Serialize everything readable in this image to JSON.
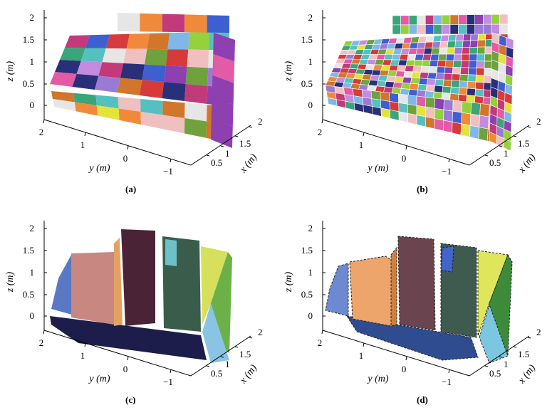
{
  "figure": {
    "panels": [
      {
        "caption": "(a)",
        "z_axis": {
          "label": "z (m)",
          "ticks": [
            "0",
            "0.5",
            "1",
            "1.5",
            "2"
          ]
        },
        "y_axis": {
          "label": "y (m)",
          "ticks": [
            "2",
            "1",
            "0",
            "−1"
          ]
        },
        "x_axis": {
          "label": "x (m)",
          "ticks": [
            "0.5",
            "1",
            "1.5",
            "2"
          ]
        },
        "segmentation": "coarse supervoxel patches"
      },
      {
        "caption": "(b)",
        "z_axis": {
          "label": "z (m)",
          "ticks": [
            "0",
            "0.5",
            "1",
            "1.5",
            "2"
          ]
        },
        "y_axis": {
          "label": "y (m)",
          "ticks": [
            "2",
            "1",
            "0",
            "−1"
          ]
        },
        "x_axis": {
          "label": "x (m)",
          "ticks": [
            "0.5",
            "1",
            "1.5",
            "2"
          ]
        },
        "segmentation": "fine supervoxel patches"
      },
      {
        "caption": "(c)",
        "z_axis": {
          "label": "z (m)",
          "ticks": [
            "0",
            "0.5",
            "1",
            "1.5",
            "2"
          ]
        },
        "y_axis": {
          "label": "y (m)",
          "ticks": [
            "2",
            "1",
            "0",
            "−1"
          ]
        },
        "x_axis": {
          "label": "x (m)",
          "ticks": [
            "0.5",
            "1",
            "1.5",
            "2"
          ]
        },
        "segmentation": "merged segments"
      },
      {
        "caption": "(d)",
        "z_axis": {
          "label": "z (m)",
          "ticks": [
            "0",
            "0.5",
            "1",
            "1.5",
            "2"
          ]
        },
        "y_axis": {
          "label": "y (m)",
          "ticks": [
            "2",
            "1",
            "0",
            "−1"
          ]
        },
        "x_axis": {
          "label": "x (m)",
          "ticks": [
            "0.5",
            "1",
            "1.5",
            "2"
          ]
        },
        "segmentation": "fitted planar surfaces"
      }
    ],
    "colors": {
      "patch_palette": [
        "#8e3fb0",
        "#e35aa7",
        "#7fb8e6",
        "#c48be0",
        "#3d5fd1",
        "#2a2f7a",
        "#e6e6e6",
        "#93d13d",
        "#d1762a",
        "#f0c0c0",
        "#6fa23c",
        "#c23a7a",
        "#e3e33a",
        "#55c0c0",
        "#d63a3a",
        "#9b7ad6",
        "#3aa57a",
        "#f08a3a"
      ],
      "c_segments": {
        "left_wall": "#5b78c4",
        "pink_board": "#c88781",
        "orange_strip": "#e3a264",
        "dark_board": "#4a2436",
        "green_board": "#3a5d4b",
        "cyan_box": "#6cc0c8",
        "yellow_panel": "#d7e05a",
        "green_edge": "#6cb04a",
        "floor": "#1c1d4a",
        "blue_corner": "#89c4e2"
      },
      "d_segments": {
        "left_wall": "#6b8ad0",
        "orange_board": "#eda56c",
        "orange_strip": "#cf7f3f",
        "brown_board": "#6a4550",
        "green_board": "#3f5b50",
        "blue_small": "#3f66c8",
        "yellow_panel": "#dfe65b",
        "green_edge": "#3d8a3b",
        "floor": "#2f4c91",
        "blue_corner": "#7cc7e0"
      }
    }
  }
}
